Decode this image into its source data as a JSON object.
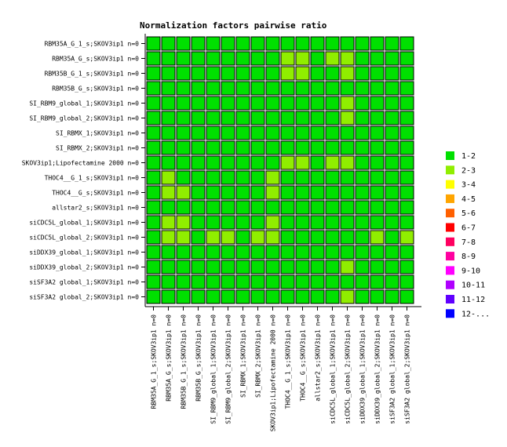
{
  "chart_data": {
    "type": "heatmap",
    "title": "Normalization factors pairwise ratio",
    "rows": [
      "RBM35A_G_1_s;SKOV3ip1 n=0",
      "RBM35A_G_s;SKOV3ip1 n=0",
      "RBM35B_G_1_s;SKOV3ip1 n=0",
      "RBM35B_G_s;SKOV3ip1 n=0",
      "SI_RBM9_global_1;SKOV3ip1 n=0",
      "SI_RBM9_global_2;SKOV3ip1 n=0",
      "SI_RBMX_1;SKOV3ip1 n=0",
      "SI_RBMX_2;SKOV3ip1 n=0",
      "SKOV3ip1;Lipofectamine 2000 n=0",
      "THOC4__G_1_s;SKOV3ip1 n=0",
      "THOC4__G_s;SKOV3ip1 n=0",
      "allstar2_s;SKOV3ip1 n=0",
      "siCDC5L_global_1;SKOV3ip1 n=0",
      "siCDC5L_global_2;SKOV3ip1 n=0",
      "siDDX39_global_1;SKOV3ip1 n=0",
      "siDDX39_global_2;SKOV3ip1 n=0",
      "siSF3A2 global_1;SKOV3ip1 n=0",
      "siSF3A2 global_2;SKOV3ip1 n=0"
    ],
    "columns": [
      "RBM35A_G_1_s;SKOV3ip1 n=0",
      "RBM35A_G_s;SKOV3ip1 n=0",
      "RBM35B_G_1_s;SKOV3ip1 n=0",
      "RBM35B_G_s;SKOV3ip1 n=0",
      "SI_RBM9_global_1;SKOV3ip1 n=0",
      "SI_RBM9_global_2;SKOV3ip1 n=0",
      "SI_RBMX_1;SKOV3ip1 n=0",
      "SI_RBMX_2;SKOV3ip1 n=0",
      "SKOV3ip1;Lipofectamine 2000 n=0",
      "THOC4__G_1_s;SKOV3ip1 n=0",
      "THOC4__G_s;SKOV3ip1 n=0",
      "allstar2_s;SKOV3ip1 n=0",
      "siCDC5L_global_1;SKOV3ip1 n=0",
      "siCDC5L_global_2;SKOV3ip1 n=0",
      "siDDX39_global_1;SKOV3ip1 n=0",
      "siDDX39_global_2;SKOV3ip1 n=0",
      "siSF3A2 global_1;SKOV3ip1 n=0",
      "siSF3A2 global_2;SKOV3ip1 n=0"
    ],
    "values": [
      [
        1,
        1,
        1,
        1,
        1,
        1,
        1,
        1,
        1,
        1,
        1,
        1,
        1,
        1,
        1,
        1,
        1,
        1
      ],
      [
        1,
        1,
        1,
        1,
        1,
        1,
        1,
        1,
        1,
        2,
        2,
        1,
        2,
        2,
        1,
        1,
        1,
        1
      ],
      [
        1,
        1,
        1,
        1,
        1,
        1,
        1,
        1,
        1,
        2,
        2,
        1,
        1,
        2,
        1,
        1,
        1,
        1
      ],
      [
        1,
        1,
        1,
        1,
        1,
        1,
        1,
        1,
        1,
        1,
        1,
        1,
        1,
        1,
        1,
        1,
        1,
        1
      ],
      [
        1,
        1,
        1,
        1,
        1,
        1,
        1,
        1,
        1,
        1,
        1,
        1,
        1,
        2,
        1,
        1,
        1,
        1
      ],
      [
        1,
        1,
        1,
        1,
        1,
        1,
        1,
        1,
        1,
        1,
        1,
        1,
        1,
        2,
        1,
        1,
        1,
        1
      ],
      [
        1,
        1,
        1,
        1,
        1,
        1,
        1,
        1,
        1,
        1,
        1,
        1,
        1,
        1,
        1,
        1,
        1,
        1
      ],
      [
        1,
        1,
        1,
        1,
        1,
        1,
        1,
        1,
        1,
        1,
        1,
        1,
        1,
        1,
        1,
        1,
        1,
        1
      ],
      [
        1,
        1,
        1,
        1,
        1,
        1,
        1,
        1,
        1,
        2,
        2,
        1,
        2,
        2,
        1,
        1,
        1,
        1
      ],
      [
        1,
        2,
        1,
        1,
        1,
        1,
        1,
        1,
        2,
        1,
        1,
        1,
        1,
        1,
        1,
        1,
        1,
        1
      ],
      [
        1,
        2,
        2,
        1,
        1,
        1,
        1,
        1,
        2,
        1,
        1,
        1,
        1,
        1,
        1,
        1,
        1,
        1
      ],
      [
        1,
        1,
        1,
        1,
        1,
        1,
        1,
        1,
        1,
        1,
        1,
        1,
        1,
        1,
        1,
        1,
        1,
        1
      ],
      [
        1,
        2,
        2,
        1,
        1,
        1,
        1,
        1,
        2,
        1,
        1,
        1,
        1,
        1,
        1,
        1,
        1,
        1
      ],
      [
        1,
        2,
        2,
        1,
        2,
        2,
        1,
        2,
        2,
        1,
        1,
        1,
        1,
        1,
        1,
        2,
        1,
        2
      ],
      [
        1,
        1,
        1,
        1,
        1,
        1,
        1,
        1,
        1,
        1,
        1,
        1,
        1,
        1,
        1,
        1,
        1,
        1
      ],
      [
        1,
        1,
        1,
        1,
        1,
        1,
        1,
        1,
        1,
        1,
        1,
        1,
        1,
        2,
        1,
        1,
        1,
        1
      ],
      [
        1,
        1,
        1,
        1,
        1,
        1,
        1,
        1,
        1,
        1,
        1,
        1,
        1,
        1,
        1,
        1,
        1,
        1
      ],
      [
        1,
        1,
        1,
        1,
        1,
        1,
        1,
        1,
        1,
        1,
        1,
        1,
        1,
        2,
        1,
        1,
        1,
        1
      ]
    ],
    "legend": {
      "placement": "right",
      "items": [
        {
          "label": "1-2",
          "color": "#00e000"
        },
        {
          "label": "2-3",
          "color": "#90ee00"
        },
        {
          "label": "3-4",
          "color": "#ffff00"
        },
        {
          "label": "4-5",
          "color": "#ffa500"
        },
        {
          "label": "5-6",
          "color": "#ff6000"
        },
        {
          "label": "6-7",
          "color": "#ff0000"
        },
        {
          "label": "7-8",
          "color": "#ff0060"
        },
        {
          "label": "8-9",
          "color": "#ff00a0"
        },
        {
          "label": "9-10",
          "color": "#ff00ff"
        },
        {
          "label": "10-11",
          "color": "#b000ff"
        },
        {
          "label": "11-12",
          "color": "#6000ff"
        },
        {
          "label": "12-...",
          "color": "#0000ff"
        }
      ]
    },
    "grid": false
  }
}
